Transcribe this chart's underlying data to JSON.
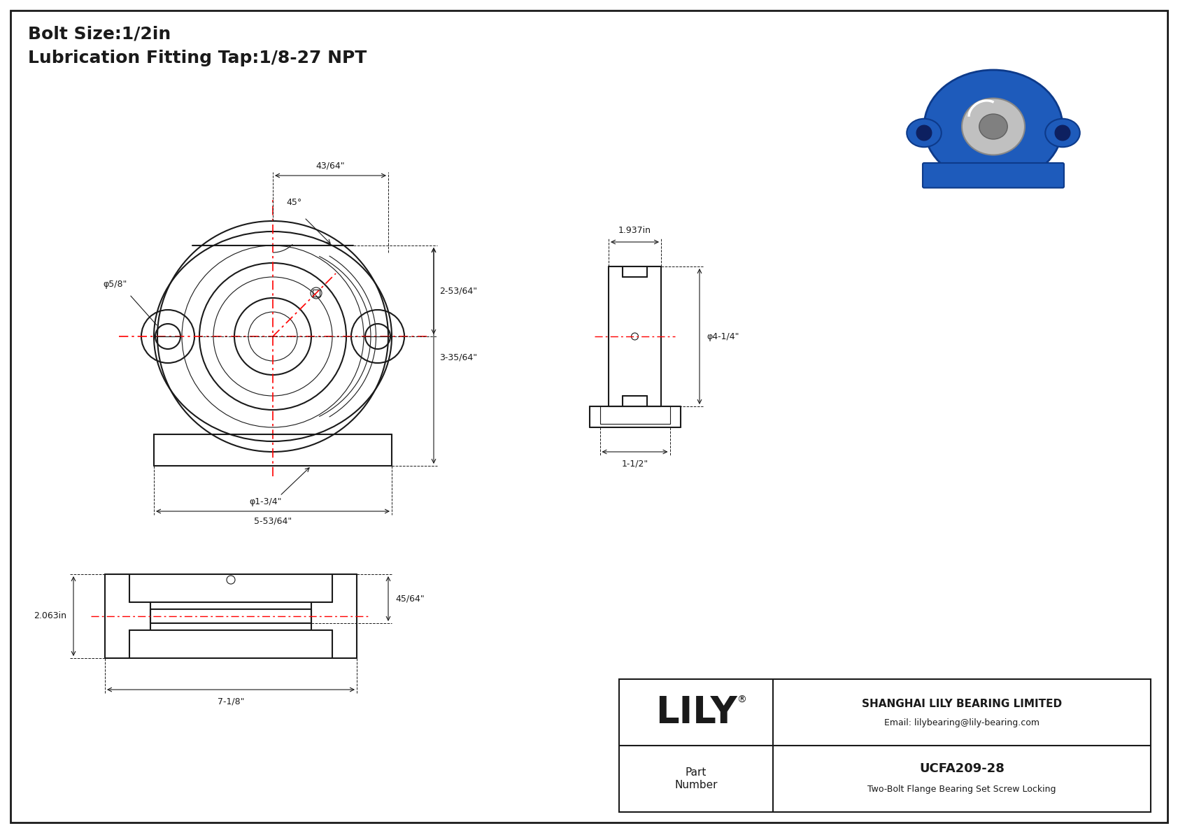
{
  "bg_color": "#ffffff",
  "line_color": "#1a1a1a",
  "red_color": "#ff0000",
  "dim_color": "#1a1a1a",
  "title_text1": "Bolt Size:1/2in",
  "title_text2": "Lubrication Fitting Tap:1/8-27 NPT",
  "lily_text": "LILY",
  "company_text1": "SHANGHAI LILY BEARING LIMITED",
  "company_text2": "Email: lilybearing@lily-bearing.com",
  "part_label": "Part\nNumber",
  "part_number": "UCFA209-28",
  "part_desc": "Two-Bolt Flange Bearing Set Screw Locking",
  "dim_5_8": "φ5/8\"",
  "dim_45deg": "45°",
  "dim_43_64": "43/64\"",
  "dim_253_64": "2-53/64\"",
  "dim_335_64": "3-35/64\"",
  "dim_1_3_4": "φ1-3/4\"",
  "dim_5_53_64": "5-53/64\"",
  "dim_1_937": "1.937in",
  "dim_4_1_4": "φ4-1/4\"",
  "dim_1_1_2": "1-1/2\"",
  "dim_2_063": "2.063in",
  "dim_45_64": "45/64\"",
  "dim_7_1_8": "7-1/8\""
}
